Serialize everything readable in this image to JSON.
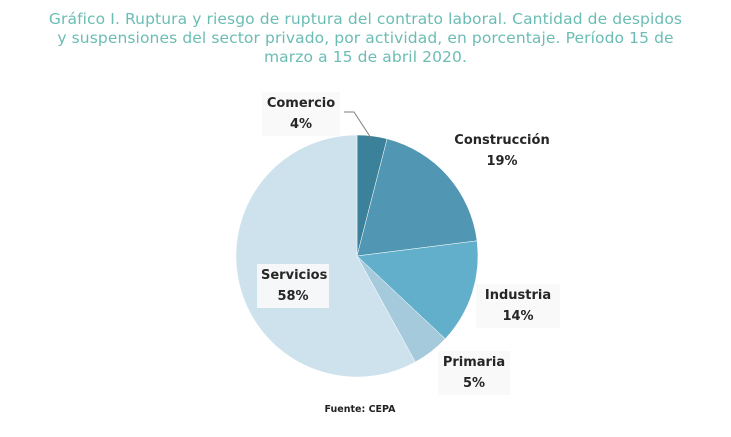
{
  "title_lines": [
    "Gráfico I. Ruptura y riesgo de ruptura del contrato laboral. Cantidad de despidos",
    "y suspensiones del sector privado, por actividad, en porcentaje. Período 15 de",
    "marzo a 15 de abril 2020."
  ],
  "source": "Fuente: CEPA",
  "colors": {
    "title": "#6bbdb4",
    "Comercio": "#3b8199",
    "Construcción": "#5196b2",
    "Industria": "#62afcb",
    "Primaria": "#a5cadc",
    "Servicios": "#cde2ec"
  },
  "chart_data": {
    "type": "pie",
    "title": "Gráfico I. Ruptura y riesgo de ruptura del contrato laboral. Cantidad de despidos y suspensiones del sector privado, por actividad, en porcentaje. Período 15 de marzo a 15 de abril 2020.",
    "unit": "%",
    "start": "top",
    "direction": "clockwise",
    "slices": [
      {
        "label": "Comercio",
        "value": 4,
        "display": "4%"
      },
      {
        "label": "Construcción",
        "value": 19,
        "display": "19%"
      },
      {
        "label": "Industria",
        "value": 14,
        "display": "14%"
      },
      {
        "label": "Primaria",
        "value": 5,
        "display": "5%"
      },
      {
        "label": "Servicios",
        "value": 58,
        "display": "58%"
      }
    ],
    "source": "Fuente: CEPA"
  }
}
